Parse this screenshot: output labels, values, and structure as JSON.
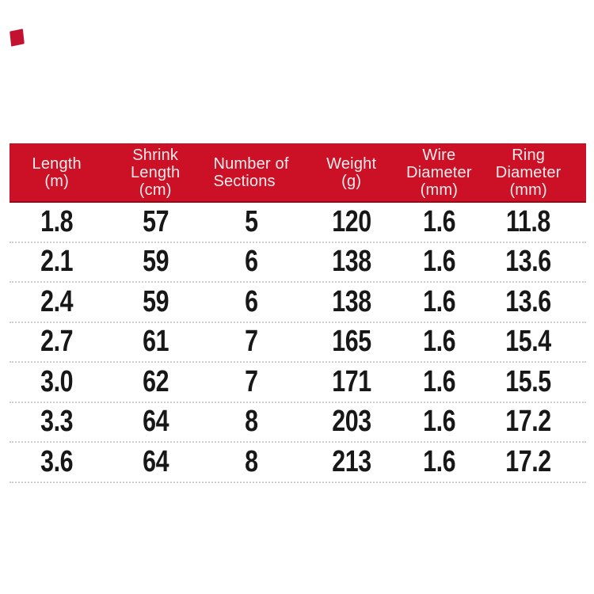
{
  "decor": {
    "corner_mark_color": "#c31230"
  },
  "table": {
    "header_bg": "#cc1126",
    "header_text_color": "#f5eded",
    "separator_color": "#cfcdcd",
    "columns": [
      "Length\n(m)",
      "Shrink\nLength\n(cm)",
      "Number of\nSections",
      "Weight\n(g)",
      "Wire\nDiameter\n(mm)",
      "Ring\nDiameter\n(mm)"
    ],
    "rows": [
      [
        "1.8",
        "57",
        "5",
        "120",
        "1.6",
        "11.8"
      ],
      [
        "2.1",
        "59",
        "6",
        "138",
        "1.6",
        "13.6"
      ],
      [
        "2.4",
        "59",
        "6",
        "138",
        "1.6",
        "13.6"
      ],
      [
        "2.7",
        "61",
        "7",
        "165",
        "1.6",
        "15.4"
      ],
      [
        "3.0",
        "62",
        "7",
        "171",
        "1.6",
        "15.5"
      ],
      [
        "3.3",
        "64",
        "8",
        "203",
        "1.6",
        "17.2"
      ],
      [
        "3.6",
        "64",
        "8",
        "213",
        "1.6",
        "17.2"
      ]
    ]
  },
  "chart_data": {
    "type": "table",
    "title": "",
    "columns": [
      "Length (m)",
      "Shrink Length (cm)",
      "Number of Sections",
      "Weight (g)",
      "Wire Diameter (mm)",
      "Ring Diameter (mm)"
    ],
    "rows": [
      [
        1.8,
        57,
        5,
        120,
        1.6,
        11.8
      ],
      [
        2.1,
        59,
        6,
        138,
        1.6,
        13.6
      ],
      [
        2.4,
        59,
        6,
        138,
        1.6,
        13.6
      ],
      [
        2.7,
        61,
        7,
        165,
        1.6,
        15.4
      ],
      [
        3.0,
        62,
        7,
        171,
        1.6,
        15.5
      ],
      [
        3.3,
        64,
        8,
        203,
        1.6,
        17.2
      ],
      [
        3.6,
        64,
        8,
        213,
        1.6,
        17.2
      ]
    ],
    "header_style": {
      "background": "#cc1126",
      "text_color": "#f5eded"
    },
    "body_style": {
      "text_color": "#171717",
      "row_separator": "dotted"
    }
  }
}
